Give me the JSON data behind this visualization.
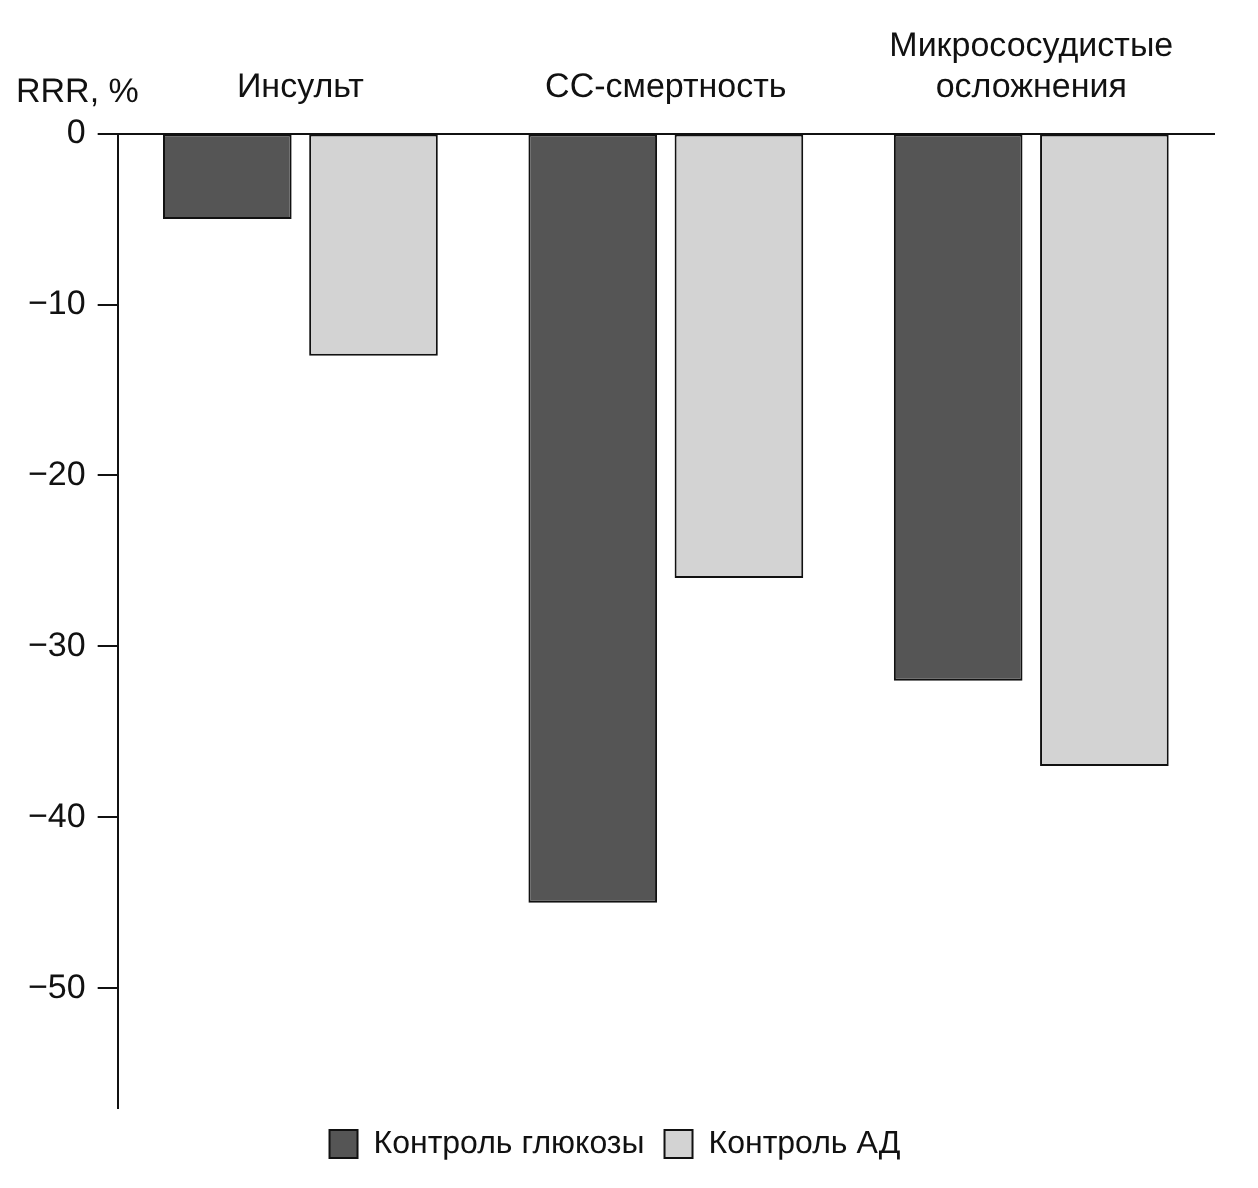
{
  "chart_data": {
    "type": "bar",
    "ylabel": "RRR, %",
    "categories": [
      "Инсульт",
      "СС-смертность",
      "Микрососудистые осложнения"
    ],
    "series": [
      {
        "name": "Контроль глюкозы",
        "color": "#555555",
        "values": [
          -5,
          -45,
          -32
        ]
      },
      {
        "name": "Контроль АД",
        "color": "#d3d3d3",
        "values": [
          -13,
          -26,
          -37
        ]
      }
    ],
    "ylim": [
      -57,
      0
    ],
    "yticks": [
      -50,
      -40,
      -30,
      -20,
      -10,
      0
    ],
    "grid": false,
    "legend": "bottom"
  }
}
